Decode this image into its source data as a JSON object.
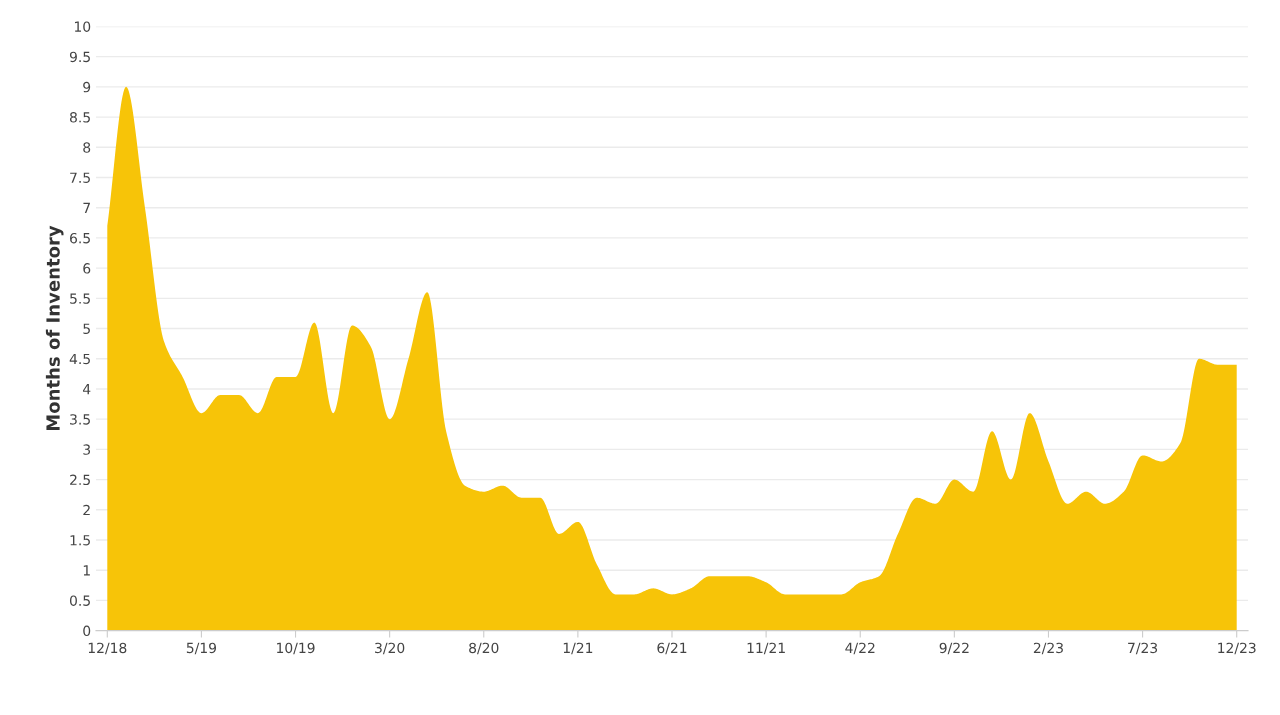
{
  "chart_data": {
    "type": "area",
    "ylabel": "Months of Inventory",
    "categories": [
      "12/18",
      null,
      null,
      null,
      null,
      "5/19",
      null,
      null,
      null,
      null,
      "10/19",
      null,
      null,
      null,
      null,
      "3/20",
      null,
      null,
      null,
      null,
      "8/20",
      null,
      null,
      null,
      null,
      "1/21",
      null,
      null,
      null,
      null,
      "6/21",
      null,
      null,
      null,
      null,
      "11/21",
      null,
      null,
      null,
      null,
      "4/22",
      null,
      null,
      null,
      null,
      "9/22",
      null,
      null,
      null,
      null,
      "2/23",
      null,
      null,
      null,
      null,
      "7/23",
      null,
      null,
      null,
      null,
      "12/23"
    ],
    "series": [
      {
        "color": "#f7c408",
        "values": [
          6.7,
          9.0,
          7.0,
          4.8,
          4.2,
          3.6,
          3.9,
          3.9,
          3.6,
          4.2,
          4.2,
          5.1,
          3.6,
          5.05,
          4.7,
          3.5,
          4.5,
          5.6,
          3.3,
          2.4,
          2.3,
          2.4,
          2.2,
          2.2,
          1.6,
          1.8,
          1.1,
          0.6,
          0.6,
          0.7,
          0.6,
          0.7,
          0.9,
          0.9,
          0.9,
          0.8,
          0.6,
          0.6,
          0.6,
          0.6,
          0.8,
          0.9,
          1.6,
          2.2,
          2.1,
          2.5,
          2.3,
          3.3,
          2.5,
          3.6,
          2.8,
          2.1,
          2.3,
          2.1,
          2.3,
          2.9,
          2.8,
          3.1,
          4.5,
          4.4,
          4.4
        ]
      }
    ],
    "ylim": [
      0,
      10
    ],
    "yticks": [
      0,
      0.5,
      1,
      1.5,
      2,
      2.5,
      3,
      3.5,
      4,
      4.5,
      5,
      5.5,
      6,
      6.5,
      7,
      7.5,
      8,
      8.5,
      9,
      9.5,
      10
    ],
    "grid": "y"
  }
}
